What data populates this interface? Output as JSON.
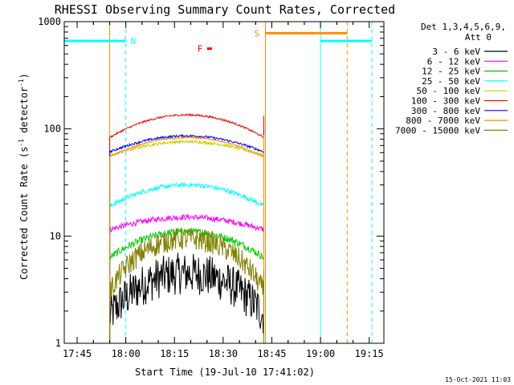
{
  "chart_data": {
    "type": "line",
    "title": "RHESSI Observing Summary Count Rates, Corrected",
    "xlabel": "Start Time (19-Jul-10 17:41:02)",
    "ylabel_main": "Corrected Count Rate (s",
    "ylabel_sup1": "-1",
    "ylabel_mid": " detector",
    "ylabel_sup2": "-1",
    "ylabel_end": ")",
    "yscale": "log",
    "ylim": [
      1,
      1000
    ],
    "xlim": [
      "17:41:02",
      "19:19:30"
    ],
    "x_ticks": [
      "17:45",
      "18:00",
      "18:15",
      "18:30",
      "18:45",
      "19:00",
      "19:15"
    ],
    "x_tick_minutes": [
      3.97,
      18.97,
      33.97,
      48.97,
      63.97,
      78.97,
      93.97
    ],
    "x_end_minutes": 98.5,
    "y_ticks": [
      "1",
      "10",
      "100",
      "1000"
    ],
    "y_tick_values": [
      1,
      10,
      100,
      1000
    ],
    "legend_header": [
      "Det 1,3,4,5,6,9,",
      "Att 0"
    ],
    "legend_placement": "top-right",
    "series": [
      {
        "name": "3 - 6 keV",
        "color": "#000000",
        "start": 14.0,
        "end": 61.5,
        "base": 1.8,
        "peak": 4.5,
        "noise": 0.45
      },
      {
        "name": "6 - 12 keV",
        "color": "#ff00ff",
        "start": 14.0,
        "end": 61.5,
        "base": 11.5,
        "peak": 15.0,
        "noise": 0.06
      },
      {
        "name": "12 - 25 keV",
        "color": "#00cc00",
        "start": 14.0,
        "end": 61.5,
        "base": 6.3,
        "peak": 11.0,
        "noise": 0.08
      },
      {
        "name": "25 - 50 keV",
        "color": "#00ffff",
        "start": 14.0,
        "end": 61.5,
        "base": 19.0,
        "peak": 30.0,
        "noise": 0.05
      },
      {
        "name": "50 - 100 keV",
        "color": "#cccc00",
        "start": 14.0,
        "end": 61.5,
        "base": 56.0,
        "peak": 76.0,
        "noise": 0.03
      },
      {
        "name": "100 - 300 keV",
        "color": "#ff0000",
        "start": 14.0,
        "end": 61.5,
        "base": 83.0,
        "peak": 135.0,
        "noise": 0.02
      },
      {
        "name": "300 - 800 keV",
        "color": "#0000ff",
        "start": 14.0,
        "end": 61.5,
        "base": 61.0,
        "peak": 86.0,
        "noise": 0.025
      },
      {
        "name": "800 - 7000 keV",
        "color": "#ff8c00",
        "start": 14.0,
        "end": 61.5,
        "base": 55.0,
        "peak": 83.0,
        "noise": 0.015
      },
      {
        "name": "7000 - 15000 keV",
        "color": "#808000",
        "start": 14.0,
        "end": 61.5,
        "base": 3.0,
        "peak": 9.5,
        "noise": 0.25
      }
    ],
    "night_intervals": [
      {
        "label": "N",
        "start": 0.0,
        "end": 18.97,
        "level": 660,
        "color": "#00ffff"
      },
      {
        "label": "",
        "start": 78.97,
        "end": 94.8,
        "level": 660,
        "color": "#00ffff"
      }
    ],
    "saa_interval": {
      "label": "S",
      "start": 62.0,
      "end": 87.2,
      "level": 780,
      "color": "#ff8c00"
    },
    "flare_marker": {
      "label": "F",
      "start": 44.0,
      "end": 45.5,
      "level": 560,
      "color": "#ff0000"
    },
    "vertical_lines": [
      {
        "x": 14.0,
        "color": "#ff8c00",
        "dashed": false
      },
      {
        "x": 18.97,
        "color": "#00ffff",
        "dashed": true
      },
      {
        "x": 62.0,
        "color": "#ff8c00",
        "dashed": false
      },
      {
        "x": 78.97,
        "color": "#00ffff",
        "dashed": false
      },
      {
        "x": 87.2,
        "color": "#ff8c00",
        "dashed": true
      },
      {
        "x": 94.8,
        "color": "#00ffff",
        "dashed": true
      }
    ]
  },
  "footer_timestamp": "15-Oct-2021 11:03"
}
